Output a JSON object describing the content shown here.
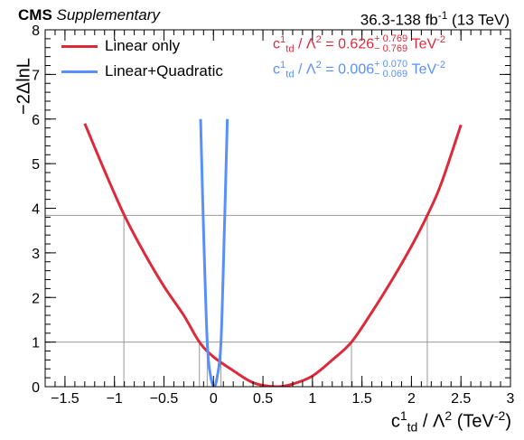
{
  "header": {
    "experiment": "CMS",
    "label": "Supplementary",
    "lumi_prefix": "36.3-138 fb",
    "lumi_exp": "-1",
    "lumi_suffix": " (13 TeV)"
  },
  "axis": {
    "y_label": "−2ΔlnL",
    "x_label_base": "c",
    "x_label_sup": "1",
    "x_label_sub": "td",
    "x_label_mid": " / Λ",
    "x_label_pow": "2",
    "x_label_unit": " (TeV",
    "x_label_unit_exp": "-2",
    "x_label_close": ")"
  },
  "legend": {
    "linear": {
      "label": "Linear only",
      "color": "#dd2a3b"
    },
    "quad": {
      "label": "Linear+Quadratic",
      "color": "#5790fc"
    }
  },
  "results": {
    "linear": {
      "lhs": "c",
      "lhs_sup": "1",
      "lhs_sub": "td",
      "mid": " / Λ",
      "pow": "2",
      "eq": " = 0.626",
      "up": "+ 0.769",
      "down": "− 0.769",
      "unit": "TeV",
      "unit_exp": "-2",
      "color": "#dd2a3b"
    },
    "quad": {
      "lhs": "c",
      "lhs_sup": "1",
      "lhs_sub": "td",
      "mid": " / Λ",
      "pow": "2",
      "eq": " = 0.006",
      "up": "+ 0.070",
      "down": "− 0.069",
      "unit": "TeV",
      "unit_exp": "-2",
      "color": "#5790fc"
    }
  },
  "chart_data": {
    "type": "line",
    "xlim": [
      -1.7,
      3.0
    ],
    "ylim": [
      0,
      8
    ],
    "x_ticks": [
      -1.5,
      -1,
      -0.5,
      0,
      0.5,
      1,
      1.5,
      2,
      2.5,
      3
    ],
    "x_tick_labels": [
      "−1.5",
      "−1",
      "−0.5",
      "0",
      "0.5",
      "1",
      "1.5",
      "2",
      "2.5",
      "3"
    ],
    "y_ticks": [
      0,
      1,
      2,
      3,
      4,
      5,
      6,
      7,
      8
    ],
    "y_tick_labels": [
      "0",
      "1",
      "2",
      "3",
      "4",
      "5",
      "6",
      "7",
      "8"
    ],
    "reference_lines_y": [
      1.0,
      3.84
    ],
    "series": [
      {
        "name": "Linear only",
        "color": "#dd2a3b",
        "x": [
          -1.3,
          -1.1,
          -0.9,
          -0.7,
          -0.5,
          -0.3,
          -0.142,
          0.0,
          0.2,
          0.4,
          0.626,
          0.8,
          1.0,
          1.2,
          1.394,
          1.6,
          1.8,
          2.0,
          2.16,
          2.3,
          2.5
        ],
        "y": [
          5.9,
          4.84,
          3.84,
          3.0,
          2.25,
          1.6,
          1.0,
          0.67,
          0.36,
          0.09,
          0.0,
          0.06,
          0.24,
          0.6,
          1.0,
          1.67,
          2.38,
          3.15,
          3.84,
          4.55,
          5.87
        ]
      },
      {
        "name": "Linear+Quadratic",
        "color": "#5790fc",
        "x": [
          -0.13,
          -0.1,
          -0.063,
          -0.03,
          0.006,
          0.04,
          0.076,
          0.11,
          0.14
        ],
        "y": [
          6.0,
          3.5,
          1.0,
          0.25,
          0.0,
          0.25,
          1.0,
          3.5,
          6.0
        ]
      }
    ],
    "vertical_markers": [
      {
        "x": -0.905,
        "y": 3.84,
        "color": "#999999"
      },
      {
        "x": -0.142,
        "y": 1.0,
        "color": "#999999"
      },
      {
        "x": 1.394,
        "y": 1.0,
        "color": "#999999"
      },
      {
        "x": 2.16,
        "y": 3.84,
        "color": "#999999"
      },
      {
        "x": -0.063,
        "y": 1.0,
        "color": "#999999"
      },
      {
        "x": 0.076,
        "y": 1.0,
        "color": "#999999"
      }
    ]
  }
}
